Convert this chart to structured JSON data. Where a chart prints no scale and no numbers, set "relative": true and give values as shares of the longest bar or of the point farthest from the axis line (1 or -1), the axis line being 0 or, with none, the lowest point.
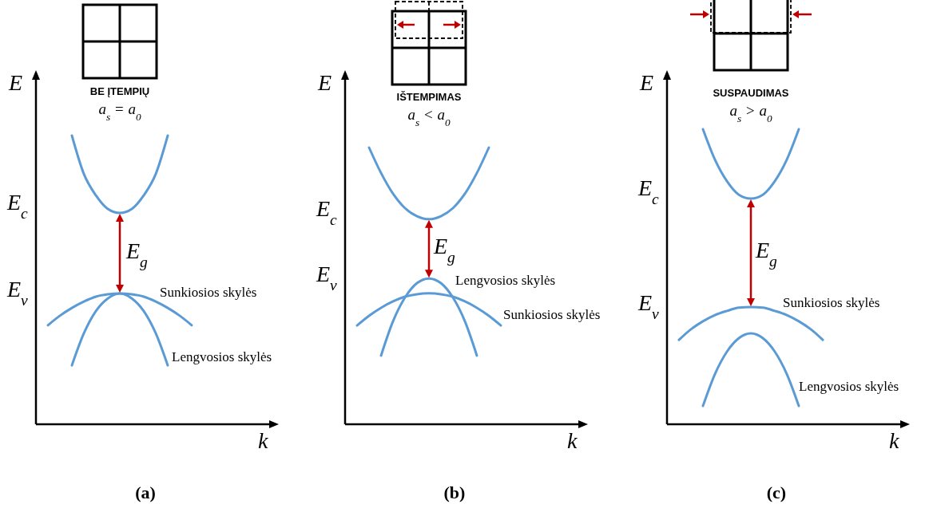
{
  "chart_data": [
    {
      "type": "line",
      "title": "(a)",
      "xlabel": "k",
      "ylabel": "E",
      "relative": true,
      "annotations": [
        "E$_{c}$",
        "E$_{v}$",
        "E$_{g}$",
        "BE ĮTEMPIŲ",
        "a$_{s}$ = a$_{0}$"
      ],
      "categories": [
        null,
        null,
        null,
        null,
        null,
        null,
        null,
        null,
        null,
        null,
        null,
        null,
        null
      ],
      "series": [
        {
          "color": "#5b9bd5",
          "values": [
            null,
            null,
            1,
            0.867,
            0.793,
            0.746,
            0.732,
            0.746,
            0.793,
            0.867,
            1,
            null,
            null
          ]
        },
        {
          "name": "Sunkiosios skylės",
          "color": "#5b9bd5",
          "values": [
            0.343,
            0.376,
            0.403,
            0.425,
            0.442,
            0.45,
            0.453,
            0.45,
            0.442,
            0.425,
            0.403,
            0.376,
            0.343
          ]
        },
        {
          "name": "Lengvosios skylės",
          "color": "#5b9bd5",
          "values": [
            null,
            null,
            0.204,
            0.315,
            0.392,
            0.436,
            0.453,
            0.436,
            0.392,
            0.315,
            0.204,
            null,
            null
          ]
        }
      ]
    },
    {
      "type": "line",
      "title": "(b)",
      "xlabel": "k",
      "ylabel": "E",
      "relative": true,
      "annotations": [
        "E$_{c}$",
        "E$_{v}$",
        "E$_{g}$",
        "IŠTEMPIMAS",
        "a$_{s}$ < a$_{0}$"
      ],
      "categories": [
        null,
        null,
        null,
        null,
        null,
        null,
        null,
        null,
        null,
        null,
        null,
        null,
        null
      ],
      "series": [
        {
          "color": "#5b9bd5",
          "values": [
            null,
            1,
            0.908,
            0.833,
            0.781,
            0.752,
            0.741,
            0.752,
            0.781,
            0.833,
            0.908,
            1,
            null
          ]
        },
        {
          "name": "Sunkiosios skylės",
          "color": "#5b9bd5",
          "values": [
            0.357,
            0.392,
            0.421,
            0.444,
            0.461,
            0.47,
            0.473,
            0.47,
            0.461,
            0.444,
            0.421,
            0.392,
            0.357
          ]
        },
        {
          "name": "Lengvosios skylės",
          "color": "#5b9bd5",
          "values": [
            null,
            null,
            0.248,
            0.372,
            0.458,
            0.51,
            0.527,
            0.51,
            0.458,
            0.372,
            0.248,
            null,
            null
          ]
        }
      ]
    },
    {
      "type": "line",
      "title": "(c)",
      "xlabel": "k",
      "ylabel": "E",
      "relative": true,
      "annotations": [
        "E$_{c}$",
        "E$_{v}$",
        "E$_{g}$",
        "SUSPAUDIMAS",
        "a$_{s}$ > a$_{0}$"
      ],
      "categories": [
        null,
        null,
        null,
        null,
        null,
        null,
        null,
        null,
        null,
        null,
        null,
        null,
        null
      ],
      "series": [
        {
          "color": "#5b9bd5",
          "values": [
            null,
            null,
            1,
            0.897,
            0.824,
            0.778,
            0.765,
            0.778,
            0.824,
            0.897,
            1,
            null,
            null
          ]
        },
        {
          "name": "Sunkiosios skylės",
          "color": "#5b9bd5",
          "values": [
            0.286,
            0.322,
            0.349,
            0.37,
            0.384,
            0.395,
            0.397,
            0.395,
            0.384,
            0.37,
            0.349,
            0.322,
            0.286
          ]
        },
        {
          "name": "Lengvosios skylės",
          "color": "#5b9bd5",
          "values": [
            null,
            null,
            0.062,
            0.17,
            0.246,
            0.292,
            0.308,
            0.292,
            0.246,
            0.17,
            0.062,
            null,
            null
          ]
        }
      ]
    }
  ]
}
